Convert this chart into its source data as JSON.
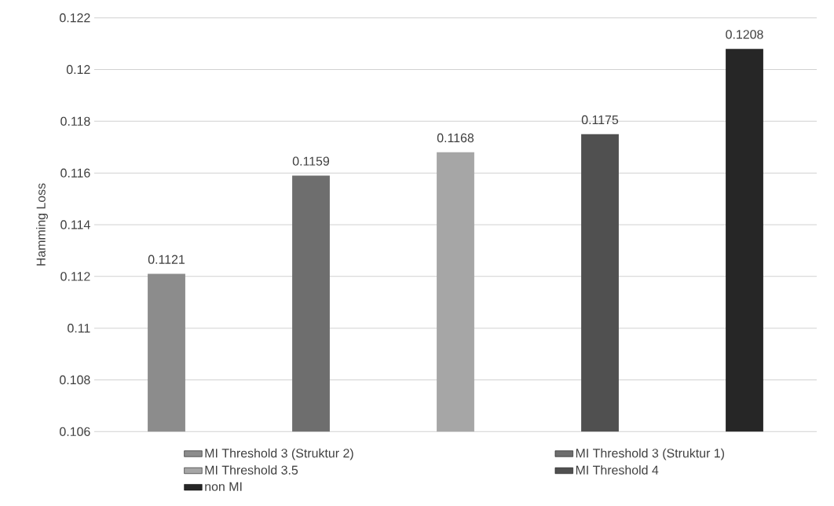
{
  "chart_data": {
    "type": "bar",
    "ylabel": "Hamming Loss",
    "categories": [
      null,
      null,
      null,
      null,
      null
    ],
    "series": [
      {
        "name": "MI Threshold 3 (Struktur 2)",
        "color": "#8c8c8c",
        "values": [
          0.1121,
          null,
          null,
          null,
          null
        ]
      },
      {
        "name": "MI Threshold 3 (Struktur 1)",
        "color": "#6e6e6e",
        "values": [
          null,
          0.1159,
          null,
          null,
          null
        ]
      },
      {
        "name": "MI Threshold 3.5",
        "color": "#a6a6a6",
        "values": [
          null,
          null,
          0.1168,
          null,
          null
        ]
      },
      {
        "name": "MI Threshold 4",
        "color": "#505050",
        "values": [
          null,
          null,
          null,
          0.1175,
          null
        ]
      },
      {
        "name": "non MI",
        "color": "#262626",
        "values": [
          null,
          null,
          null,
          null,
          0.1208
        ]
      }
    ],
    "ylim": [
      0.106,
      0.122
    ],
    "yticks": [
      0.106,
      0.108,
      0.11,
      0.112,
      0.114,
      0.116,
      0.118,
      0.12,
      0.122
    ],
    "grid": "y",
    "legend": "bottom",
    "data_labels": true
  }
}
